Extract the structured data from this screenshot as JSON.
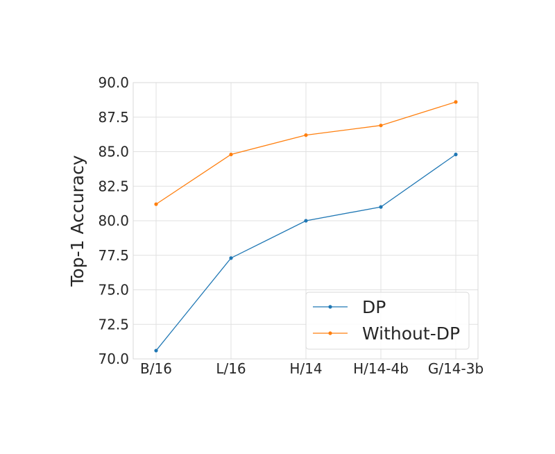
{
  "chart_data": {
    "type": "line",
    "categories": [
      "B/16",
      "L/16",
      "H/14",
      "H/14-4b",
      "G/14-3b"
    ],
    "series": [
      {
        "name": "DP",
        "values": [
          70.6,
          77.3,
          80.0,
          81.0,
          84.8
        ],
        "color": "#1f77b4"
      },
      {
        "name": "Without-DP",
        "values": [
          81.2,
          84.8,
          86.2,
          86.9,
          88.6
        ],
        "color": "#ff7f0e"
      }
    ],
    "title": "",
    "xlabel": "",
    "ylabel": "Top-1 Accuracy",
    "ylim": [
      70.0,
      90.0
    ],
    "yticks": [
      "70.0",
      "72.5",
      "75.0",
      "77.5",
      "80.0",
      "82.5",
      "85.0",
      "87.5",
      "90.0"
    ],
    "grid": true,
    "legend_position": "lower-right"
  }
}
